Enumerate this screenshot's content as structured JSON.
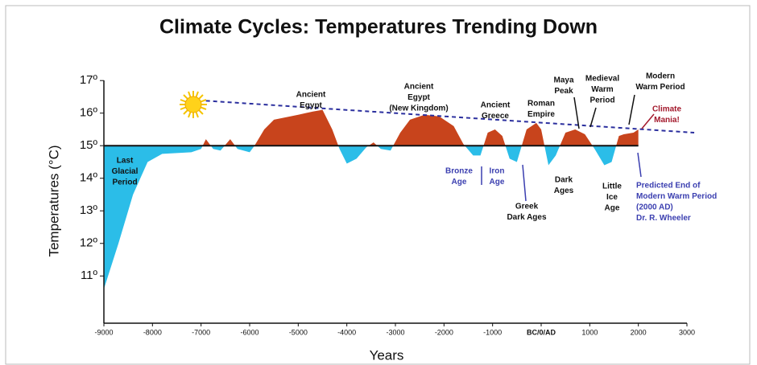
{
  "chart_data": {
    "type": "area",
    "title": "Climate Cycles: Temperatures Trending Down",
    "x_label": "Years",
    "y_label": "Temperatures (°C)",
    "xlim": [
      -9000,
      3000
    ],
    "ylim": [
      9.55,
      17.4
    ],
    "xticks": [
      -9000,
      -8000,
      -7000,
      -6000,
      -5000,
      -4000,
      -3000,
      -2000,
      -1000,
      {
        "value": 0,
        "label": "BC/0/AD"
      },
      1000,
      2000,
      3000
    ],
    "yticks": [
      {
        "value": 11,
        "label": "11º"
      },
      {
        "value": 12,
        "label": "12º"
      },
      {
        "value": 13,
        "label": "13º"
      },
      {
        "value": 14,
        "label": "14º"
      },
      {
        "value": 15,
        "label": "15º"
      },
      {
        "value": 16,
        "label": "16º"
      },
      {
        "value": 17,
        "label": "17º"
      }
    ],
    "baseline": 15,
    "above_color": "#c8441c",
    "below_color": "#2bbde8",
    "x": [
      -9000,
      -8700,
      -8400,
      -8100,
      -7800,
      -7200,
      -7000,
      -6900,
      -6750,
      -6600,
      -6400,
      -6250,
      -6000,
      -5900,
      -5700,
      -5500,
      -5000,
      -4700,
      -4500,
      -4300,
      -4150,
      -4000,
      -3800,
      -3600,
      -3450,
      -3300,
      -3100,
      -2900,
      -2700,
      -2400,
      -2100,
      -1800,
      -1600,
      -1400,
      -1250,
      -1100,
      -950,
      -800,
      -650,
      -500,
      -300,
      -100,
      0,
      150,
      300,
      500,
      700,
      900,
      1100,
      1300,
      1450,
      1600,
      1700,
      1900,
      2000
    ],
    "series": [
      {
        "values": [
          10.6,
          12.0,
          13.5,
          14.5,
          14.75,
          14.8,
          14.9,
          15.2,
          14.9,
          14.85,
          15.2,
          14.9,
          14.8,
          15.0,
          15.5,
          15.8,
          15.95,
          16.05,
          16.1,
          15.5,
          14.9,
          14.45,
          14.6,
          14.95,
          15.1,
          14.9,
          14.85,
          15.4,
          15.8,
          15.95,
          15.9,
          15.6,
          15.05,
          14.7,
          14.7,
          15.4,
          15.5,
          15.3,
          14.6,
          14.5,
          15.5,
          15.7,
          15.5,
          14.4,
          14.7,
          15.4,
          15.5,
          15.35,
          14.9,
          14.4,
          14.5,
          15.3,
          15.35,
          15.4,
          15.5
        ]
      }
    ],
    "trend": {
      "x": [
        -6900,
        3150
      ],
      "values": [
        16.38,
        15.4
      ],
      "color": "#2b2f9e"
    },
    "annotations": [
      {
        "lines": [
          "Last",
          "Glacial",
          "Period"
        ],
        "color": "#111111"
      },
      {
        "lines": [
          "Ancient",
          "Egypt"
        ],
        "color": "#111111"
      },
      {
        "lines": [
          "Ancient",
          "Egypt",
          "(New Kingdom)"
        ],
        "color": "#111111"
      },
      {
        "lines": [
          "Ancient",
          "Greece"
        ],
        "color": "#111111"
      },
      {
        "lines": [
          "Roman",
          "Empire"
        ],
        "color": "#111111"
      },
      {
        "lines": [
          "Maya",
          "Peak"
        ],
        "color": "#111111"
      },
      {
        "lines": [
          "Medieval",
          "Warm",
          "Period"
        ],
        "color": "#111111"
      },
      {
        "lines": [
          "Modern",
          "Warm Period"
        ],
        "color": "#111111"
      },
      {
        "lines": [
          "Climate",
          "Mania!"
        ],
        "color": "#a3192c"
      },
      {
        "lines": [
          "Bronze",
          "Age"
        ],
        "color": "#3b3fb0"
      },
      {
        "lines": [
          "Iron",
          "Age"
        ],
        "color": "#3b3fb0"
      },
      {
        "lines": [
          "Greek",
          "Dark Ages"
        ],
        "color": "#111111"
      },
      {
        "lines": [
          "Dark",
          "Ages"
        ],
        "color": "#111111"
      },
      {
        "lines": [
          "Little",
          "Ice",
          "Age"
        ],
        "color": "#111111"
      },
      {
        "lines": [
          "Predicted End of",
          "Modern Warm Period",
          "(2000 AD)",
          "Dr. R. Wheeler"
        ],
        "color": "#3b3fb0"
      }
    ]
  }
}
